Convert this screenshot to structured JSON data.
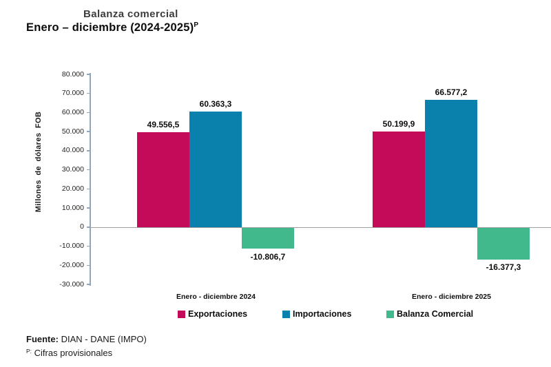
{
  "title": {
    "line1": "Balanza comercial",
    "line2": "Enero – diciembre (2024-2025)",
    "superscript": "P"
  },
  "chart_data": {
    "type": "bar",
    "title": "Balanza comercial",
    "subtitle": "Enero – diciembre (2024-2025)P",
    "ylabel": "Millones de dólares FOB",
    "xlabel": "",
    "ylim": [
      -30000,
      80000
    ],
    "ytick_step": 10000,
    "ytick_values": [
      80000,
      70000,
      60000,
      50000,
      40000,
      30000,
      20000,
      10000,
      0,
      -10000,
      -20000,
      -30000
    ],
    "ytick_labels": [
      "80.000",
      "70.000",
      "60.000",
      "50.000",
      "40.000",
      "30.000",
      "20.000",
      "10.000",
      "0",
      "-10.000",
      "-20.000",
      "-30.000"
    ],
    "categories": [
      "Enero - diciembre 2024",
      "Enero - diciembre 2025"
    ],
    "series": [
      {
        "name": "Exportaciones",
        "color": "#C30B59",
        "values": [
          49556.5,
          50199.9
        ],
        "value_labels": [
          "49.556,5",
          "50.199,9"
        ]
      },
      {
        "name": "Importaciones",
        "color": "#0A80AD",
        "values": [
          60363.3,
          66577.2
        ],
        "value_labels": [
          "60.363,3",
          "66.577,2"
        ]
      },
      {
        "name": "Balanza Comercial",
        "color": "#41B98C",
        "values": [
          -10806.7,
          -16377.3
        ],
        "value_labels": [
          "-10.806,7",
          "-16.377,3"
        ]
      }
    ],
    "legend_position": "bottom",
    "grid": false,
    "axis_color": "#8FA7BC",
    "zero_line_color": "#9E9E9E"
  },
  "footer": {
    "source_label": "Fuente:",
    "source_value": "DIAN - DANE (IMPO)",
    "note_superscript": "P:",
    "note_text": "Cifras provisionales"
  }
}
